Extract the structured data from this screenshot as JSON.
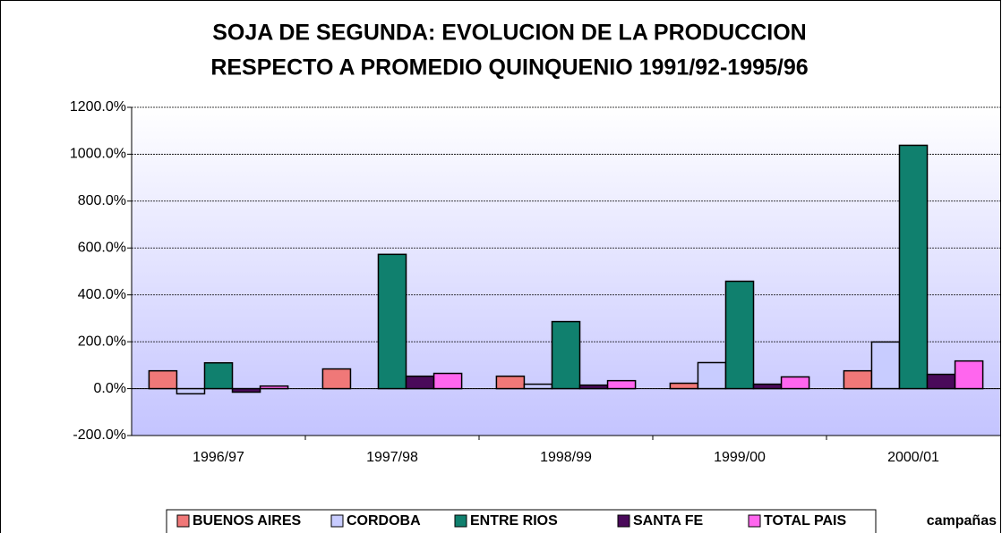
{
  "chart_data": {
    "type": "bar",
    "title": [
      "SOJA DE SEGUNDA: EVOLUCION DE LA PRODUCCION",
      "RESPECTO A PROMEDIO QUINQUENIO 1991/92-1995/96"
    ],
    "x_label": "campañas",
    "categories": [
      "1996/97",
      "1997/98",
      "1998/99",
      "1999/00",
      "2000/01"
    ],
    "series": [
      {
        "name": "BUENOS AIRES",
        "color": "#f07878",
        "values": [
          76,
          84,
          53,
          23,
          76
        ]
      },
      {
        "name": "CORDOBA",
        "color": "#c8ccff",
        "values": [
          -22,
          0,
          19,
          111,
          199
        ]
      },
      {
        "name": "ENTRE RIOS",
        "color": "#10806e",
        "values": [
          110,
          573,
          286,
          458,
          1038
        ]
      },
      {
        "name": "SANTA FE",
        "color": "#4a0a5a",
        "values": [
          -15,
          53,
          15,
          19,
          61
        ]
      },
      {
        "name": "TOTAL PAIS",
        "color": "#ff66ee",
        "values": [
          11,
          65,
          34,
          50,
          118
        ]
      }
    ],
    "ylim": [
      -200,
      1200
    ],
    "yticks": [
      {
        "value": -200,
        "label": "-200.0%"
      },
      {
        "value": 0,
        "label": "0.0%"
      },
      {
        "value": 200,
        "label": "200.0%"
      },
      {
        "value": 400,
        "label": "400.0%"
      },
      {
        "value": 600,
        "label": "600.0%"
      },
      {
        "value": 800,
        "label": "800.0%"
      },
      {
        "value": 1000,
        "label": "1000.0%"
      },
      {
        "value": 1200,
        "label": "1200.0%"
      }
    ],
    "grid": true,
    "legend": "bottom"
  }
}
